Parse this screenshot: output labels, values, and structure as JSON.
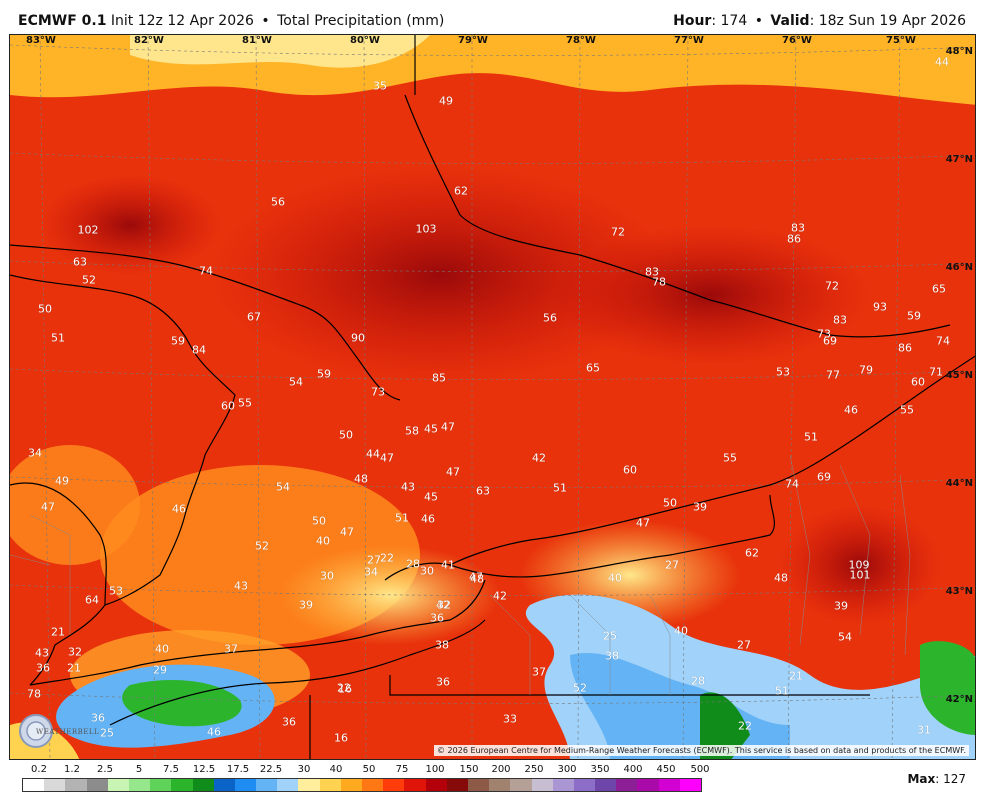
{
  "header": {
    "model": "ECMWF 0.1",
    "init": "Init 12z 12 Apr 2026",
    "product": "Total Precipitation (mm)",
    "hour_label": "Hour",
    "hour": "174",
    "valid_label": "Valid",
    "valid": "18z Sun 19 Apr 2026"
  },
  "map": {
    "lon_labels": [
      "83°W",
      "82°W",
      "81°W",
      "80°W",
      "79°W",
      "78°W",
      "77°W",
      "76°W",
      "75°W"
    ],
    "lat_labels": [
      "48°N",
      "47°N",
      "46°N",
      "45°N",
      "44°N",
      "43°N",
      "42°N"
    ],
    "values": [
      "35",
      "49",
      "44",
      "62",
      "56",
      "102",
      "103",
      "72",
      "83",
      "86",
      "63",
      "52",
      "74",
      "83",
      "78",
      "72",
      "65",
      "50",
      "51",
      "67",
      "93",
      "59",
      "59",
      "84",
      "90",
      "56",
      "83",
      "73",
      "69",
      "86",
      "74",
      "54",
      "59",
      "65",
      "53",
      "77",
      "79",
      "71",
      "60",
      "73",
      "85",
      "60",
      "55",
      "46",
      "55",
      "50",
      "58",
      "45",
      "47",
      "51",
      "34",
      "44",
      "47",
      "42",
      "47",
      "55",
      "49",
      "48",
      "43",
      "63",
      "51",
      "60",
      "74",
      "69",
      "47",
      "54",
      "45",
      "50",
      "39",
      "47",
      "46",
      "50",
      "47",
      "51",
      "46",
      "40",
      "52",
      "27",
      "22",
      "28",
      "41",
      "47",
      "62",
      "34",
      "30",
      "30",
      "109",
      "101",
      "42",
      "43",
      "39",
      "48",
      "40",
      "27",
      "48",
      "64",
      "53",
      "42",
      "32",
      "36",
      "39",
      "25",
      "40",
      "21",
      "27",
      "54",
      "43",
      "32",
      "40",
      "37",
      "38",
      "38",
      "52",
      "21",
      "36",
      "21",
      "29",
      "37",
      "36",
      "28",
      "51",
      "78",
      "16",
      "22",
      "33",
      "36",
      "36",
      "46",
      "16",
      "25",
      "22",
      "31",
      "20",
      "21",
      "23"
    ]
  },
  "credit": "© 2026 European Centre for Medium-Range Weather Forecasts (ECMWF). This service is based on data and products of the ECMWF.",
  "logo": {
    "name": "WEATHERBELL"
  },
  "legend": {
    "labels": [
      "0.2",
      "1.2",
      "2.5",
      "5",
      "7.5",
      "12.5",
      "17.5",
      "22.5",
      "30",
      "40",
      "50",
      "75",
      "100",
      "150",
      "200",
      "250",
      "300",
      "350",
      "400",
      "450",
      "500"
    ],
    "colors": [
      "#ffffff",
      "#d9d9d9",
      "#b3b3b3",
      "#8c8c8c",
      "#c8f5b4",
      "#96e68c",
      "#5fd25a",
      "#2db42d",
      "#0f8c19",
      "#0a64c8",
      "#1e8cf0",
      "#64b4f5",
      "#a0d2fa",
      "#ffef9c",
      "#ffd250",
      "#ffaa1e",
      "#ff7814",
      "#ff3c0a",
      "#e1140a",
      "#b4000a",
      "#870a0a",
      "#8c5a46",
      "#a0826e",
      "#b4a096",
      "#c8bed2",
      "#aa96d2",
      "#8c6ec8",
      "#6e46aa",
      "#8c1e96",
      "#aa0aaa",
      "#d200d2",
      "#ff00ff"
    ]
  },
  "max": {
    "label": "Max",
    "value": "127"
  }
}
